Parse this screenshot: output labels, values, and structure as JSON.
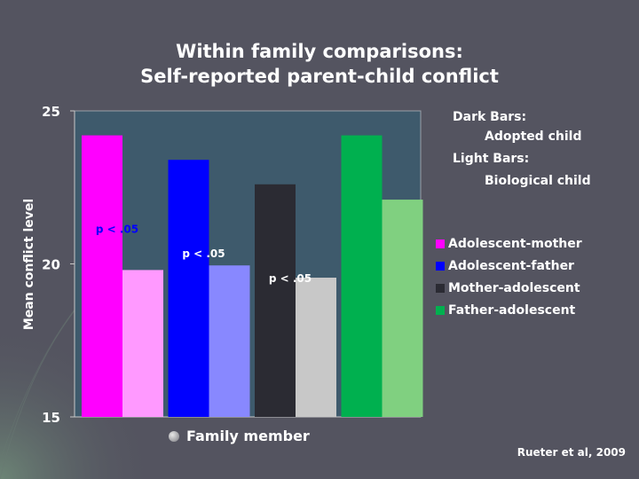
{
  "title": {
    "line1": "Within family comparisons:",
    "line2": "Self-reported parent-child conflict"
  },
  "notes": {
    "dark_label": "Dark Bars:",
    "dark_value": "Adopted child",
    "light_label": "Light Bars:",
    "light_value": "Biological child"
  },
  "source": "Rueter et al, 2009",
  "chart_data": {
    "type": "bar",
    "categories": [
      "Adolescent-mother",
      "Adolescent-father",
      "Mother-adolescent",
      "Father-adolescent"
    ],
    "series": [
      {
        "name": "Adopted child",
        "values": [
          24.2,
          23.4,
          22.6,
          24.2
        ]
      },
      {
        "name": "Biological child",
        "values": [
          19.8,
          19.95,
          19.55,
          22.1
        ]
      }
    ],
    "colors": {
      "dark": [
        "#ff00ff",
        "#0000ff",
        "#2b2b33",
        "#00b04f"
      ],
      "light": [
        "#ff99ff",
        "#8888ff",
        "#c8c8c8",
        "#80d080"
      ]
    },
    "annotations": [
      "p < .05",
      "p < .05",
      "p < .05"
    ],
    "annotation_colors": [
      "#0000ff",
      "#ffffff",
      "#ffffff"
    ],
    "legend": [
      "Adolescent-mother",
      "Adolescent-father",
      "Mother-adolescent",
      "Father-adolescent"
    ],
    "legend_placement": "right",
    "ylabel": "Mean conflict level",
    "xlabel": "Family member",
    "ylim": [
      15,
      25
    ],
    "yticks": [
      "15",
      "20",
      "25"
    ],
    "plot_background": "#3e5a6c",
    "grid": false
  }
}
